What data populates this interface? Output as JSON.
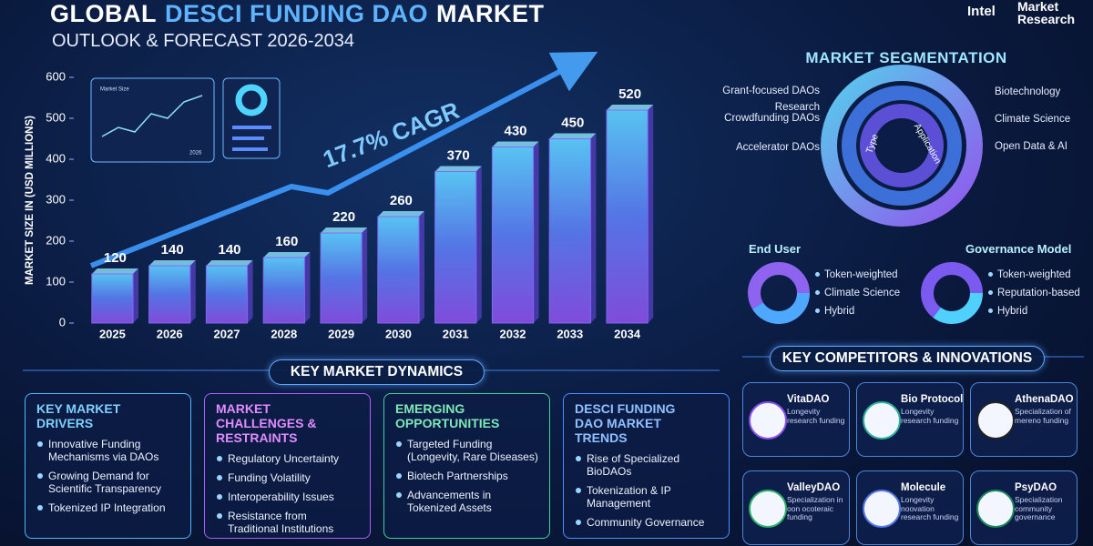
{
  "header": {
    "title_start": "GLOBAL",
    "title_highlight": "DESCI FUNDING DAO",
    "title_end": "MARKET",
    "subtitle": "OUTLOOK & FORECAST 2026-2034",
    "logo": "Intel",
    "logo_text": "Market Research"
  },
  "chart_data": {
    "type": "bar",
    "y_label": "MARKET SIZE IN (USD MILLIONS)",
    "annotation": "17.7% CAGR",
    "categories": [
      "2025",
      "2026",
      "2027",
      "2028",
      "2029",
      "2030",
      "2031",
      "2032",
      "2033",
      "2034"
    ],
    "values": [
      120,
      140,
      140,
      160,
      220,
      260,
      370,
      430,
      450,
      520
    ],
    "color": "#8a6cff",
    "ylim": [
      0,
      600
    ],
    "yticks": [
      0,
      100,
      200,
      300,
      400,
      500,
      600
    ],
    "grid": false,
    "inset": {
      "title": "Market Size",
      "year": "2026"
    }
  },
  "segmentation": {
    "title": "MARKET SEGMENTATION",
    "type_label": "Type",
    "application_label": "Application",
    "types": [
      "Grant-focused DAOs",
      "Research Crowdfunding DAOs",
      "Accelerator DAOs"
    ],
    "applications": [
      "Biotechnology",
      "Climate Science",
      "Open Data & AI"
    ],
    "end_user": {
      "title": "End User",
      "items": [
        "Token-weighted",
        "Climate Science",
        "Hybrid"
      ]
    },
    "governance": {
      "title": "Governance Model",
      "items": [
        "Token-weighted",
        "Reputation-based",
        "Hybrid"
      ]
    }
  },
  "competitors": {
    "title": "KEY COMPETITORS & INNOVATIONS",
    "items": [
      {
        "name": "VitaDAO",
        "description": "Longevity research funding"
      },
      {
        "name": "Bio Protocol",
        "description": "Longevity research funding"
      },
      {
        "name": "AthenaDAO",
        "description": "Specialization of mereno funding"
      },
      {
        "name": "ValleyDAO",
        "description": "Specialization in oon ocoteraic funding"
      },
      {
        "name": "Molecule",
        "description": "Longevity noovation research funding"
      },
      {
        "name": "PsyDAO",
        "description": "Specialization community governance"
      }
    ]
  },
  "dynamics": {
    "title": "KEY MARKET DYNAMICS",
    "boxes": [
      {
        "title": "KEY MARKET DRIVERS",
        "items": [
          "Innovative Funding Mechanisms via DAOs",
          "Growing Demand for Scientific Transparency",
          "Tokenized IP Integration"
        ]
      },
      {
        "title": "MARKET CHALLENGES & RESTRAINTS",
        "items": [
          "Regulatory Uncertainty",
          "Funding Volatility",
          "Interoperability Issues",
          "Resistance from Traditional Institutions"
        ]
      },
      {
        "title": "EMERGING OPPORTUNITIES",
        "items": [
          "Targeted Funding (Longevity, Rare Diseases)",
          "Biotech Partnerships",
          "Advancements in Tokenized Assets"
        ]
      },
      {
        "title": "DESCI FUNDING DAO MARKET TRENDS",
        "items": [
          "Rise of Specialized BioDAOs",
          "Tokenization & IP Management",
          "Community Governance"
        ]
      }
    ]
  }
}
